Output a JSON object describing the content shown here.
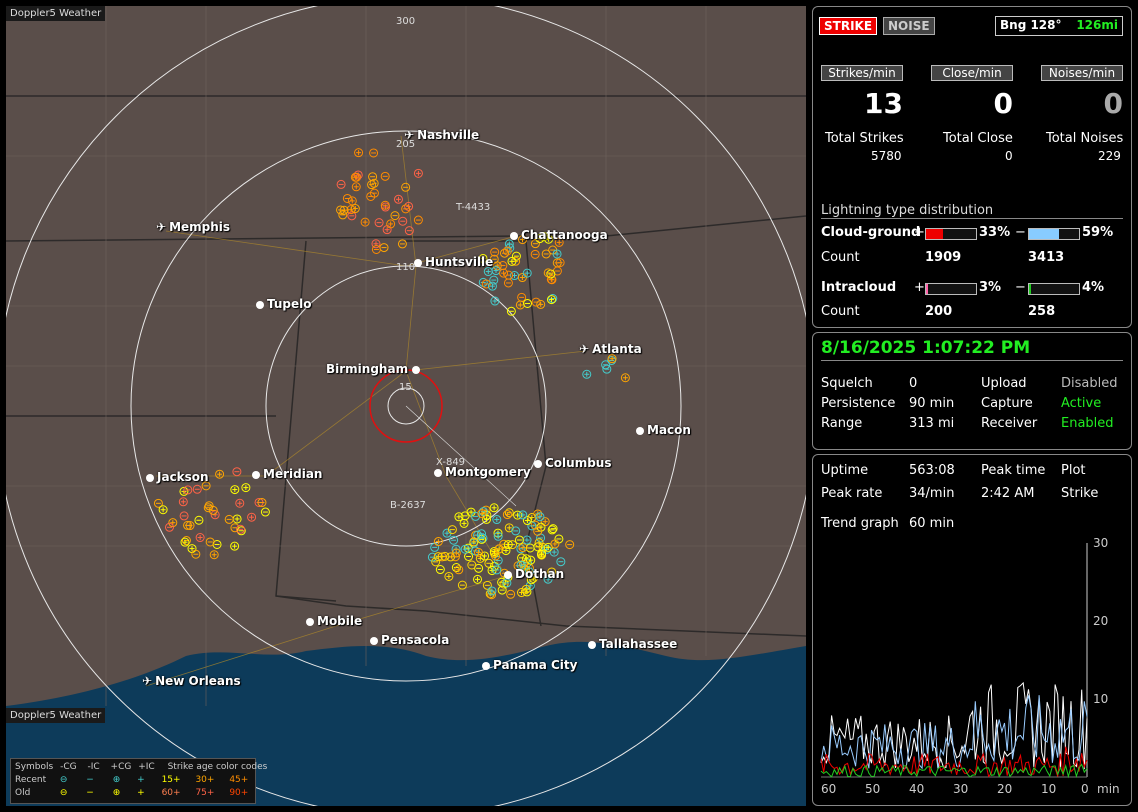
{
  "map": {
    "title": "Doppler5 Weather",
    "bottom_label": "Doppler5 Weather",
    "ring_labels": [
      "300",
      "205",
      "110",
      "15"
    ],
    "cities": [
      {
        "name": "Nashville",
        "icon": "airport-icon"
      },
      {
        "name": "Memphis",
        "icon": "airport-icon"
      },
      {
        "name": "Chattanooga",
        "icon": "city-dot-icon"
      },
      {
        "name": "Huntsville",
        "icon": "city-dot-icon"
      },
      {
        "name": "Tupelo",
        "icon": "city-dot-icon"
      },
      {
        "name": "Atlanta",
        "icon": "airport-icon"
      },
      {
        "name": "Birmingham",
        "icon": "city-dot-icon"
      },
      {
        "name": "Macon",
        "icon": "city-dot-icon"
      },
      {
        "name": "Jackson",
        "icon": "city-dot-icon"
      },
      {
        "name": "Meridian",
        "icon": "city-dot-icon"
      },
      {
        "name": "Montgomery",
        "icon": "city-dot-icon"
      },
      {
        "name": "Columbus",
        "icon": "city-dot-icon"
      },
      {
        "name": "Dothan",
        "icon": "city-dot-icon"
      },
      {
        "name": "Mobile",
        "icon": "city-dot-icon"
      },
      {
        "name": "Pensacola",
        "icon": "city-dot-icon"
      },
      {
        "name": "Tallahassee",
        "icon": "city-dot-icon"
      },
      {
        "name": "Panama City",
        "icon": "city-dot-icon"
      },
      {
        "name": "New Orleans",
        "icon": "airport-icon"
      }
    ],
    "markers": [
      "T-4433",
      "X-849",
      "B-2637"
    ],
    "legend": {
      "symbols_label": "Symbols",
      "col_neg_cg": "-CG",
      "col_neg_ic": "-IC",
      "col_pos_cg": "+CG",
      "col_pos_ic": "+IC",
      "age_title": "Strike age color codes",
      "recent": "Recent",
      "old": "Old",
      "ages_recent": [
        "15+",
        "30+",
        "45+"
      ],
      "ages_old": [
        "60+",
        "75+",
        "90+"
      ],
      "age_colors_recent": [
        "#ffff00",
        "#ffa500",
        "#ff8c00"
      ],
      "age_colors_old": [
        "#ff7f50",
        "#ff6347",
        "#ff4500"
      ]
    }
  },
  "status": {
    "strike_label": "STRIKE",
    "noise_label": "NOISE",
    "bearing_label": "Bng 128°",
    "bearing_distance": "126mi"
  },
  "rates": {
    "strikes_min_label": "Strikes/min",
    "close_min_label": "Close/min",
    "noises_min_label": "Noises/min",
    "strikes_min": "13",
    "close_min": "0",
    "noises_min": "0",
    "total_strikes_label": "Total Strikes",
    "total_close_label": "Total Close",
    "total_noises_label": "Total Noises",
    "total_strikes": "5780",
    "total_close": "0",
    "total_noises": "229"
  },
  "distribution": {
    "title": "Lightning type distribution",
    "cloud_ground_label": "Cloud-ground",
    "intracloud_label": "Intracloud",
    "count_label": "Count",
    "plus_sign": "+",
    "minus_sign": "−",
    "cg_pos_pct": "33%",
    "cg_neg_pct": "59%",
    "cg_pos_count": "1909",
    "cg_neg_count": "3413",
    "ic_pos_pct": "3%",
    "ic_neg_pct": "4%",
    "ic_pos_count": "200",
    "ic_neg_count": "258",
    "cg_pos_frac": 0.33,
    "cg_neg_frac": 0.59,
    "ic_pos_frac": 0.03,
    "ic_neg_frac": 0.04
  },
  "settings": {
    "datetime": "8/16/2025 1:07:22 PM",
    "squelch_label": "Squelch",
    "squelch": "0",
    "persistence_label": "Persistence",
    "persistence": "90 min",
    "range_label": "Range",
    "range": "313 mi",
    "upload_label": "Upload",
    "upload": "Disabled",
    "capture_label": "Capture",
    "capture": "Active",
    "receiver_label": "Receiver",
    "receiver": "Enabled"
  },
  "trend": {
    "uptime_label": "Uptime",
    "uptime": "563:08",
    "peak_time_label": "Peak time",
    "peak_time": "2:42 AM",
    "plot_label": "Plot",
    "plot": "Strike",
    "peak_rate_label": "Peak rate",
    "peak_rate": "34/min",
    "trend_graph_label": "Trend graph",
    "trend_graph": "60 min",
    "y_ticks": [
      "30",
      "20",
      "10"
    ],
    "x_ticks": [
      "60",
      "50",
      "40",
      "30",
      "20",
      "10",
      "0"
    ],
    "x_unit": "min"
  }
}
